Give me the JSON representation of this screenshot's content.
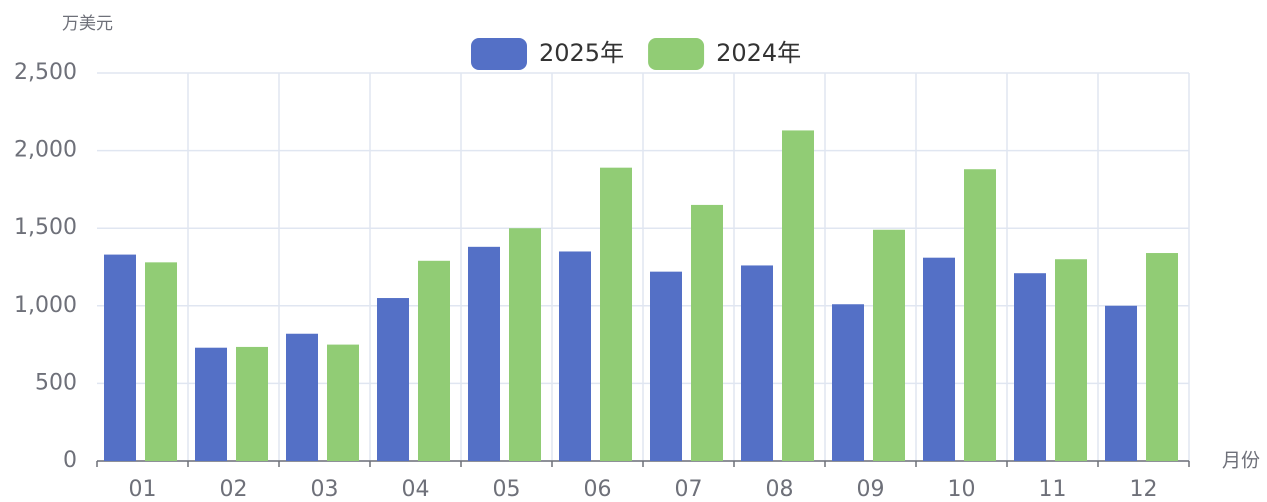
{
  "chart_data": {
    "type": "bar",
    "y_axis_label": "万美元",
    "x_axis_label": "月份",
    "categories": [
      "01",
      "02",
      "03",
      "04",
      "05",
      "06",
      "07",
      "08",
      "09",
      "10",
      "11",
      "12"
    ],
    "series": [
      {
        "name": "2025年",
        "color": "#5470c6",
        "values": [
          1330,
          730,
          820,
          1050,
          1380,
          1350,
          1220,
          1260,
          1010,
          1310,
          1210,
          1000
        ]
      },
      {
        "name": "2024年",
        "color": "#91cc75",
        "values": [
          1280,
          735,
          750,
          1290,
          1500,
          1890,
          1650,
          2130,
          1490,
          1880,
          1300,
          1340
        ]
      }
    ],
    "ylim": [
      0,
      2500
    ],
    "yticks": [
      0,
      500,
      {
        "value": 1000,
        "label": "1,000"
      },
      {
        "value": 1500,
        "label": "1,500"
      },
      {
        "value": 2000,
        "label": "2,000"
      },
      {
        "value": 2500,
        "label": "2,500"
      }
    ],
    "grid": true,
    "legend": "top"
  }
}
